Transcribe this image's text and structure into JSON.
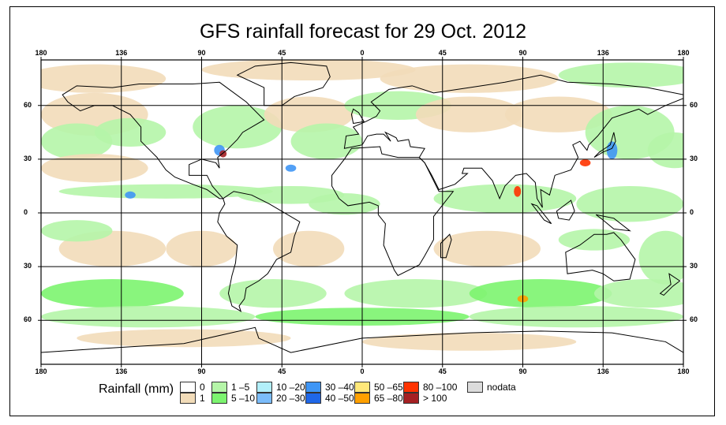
{
  "title": "GFS rainfall forecast for 29 Oct. 2012",
  "lon_labels": [
    "180",
    "136",
    "90",
    "45",
    "0",
    "45",
    "90",
    "136",
    "180"
  ],
  "lat_labels": [
    "60",
    "30",
    "0",
    "30",
    "60"
  ],
  "legend": {
    "title": "Rainfall (mm)",
    "items": [
      {
        "label": "0",
        "color": "#ffffff"
      },
      {
        "label": "1",
        "color": "#f2dcb9"
      },
      {
        "label": "1 –5",
        "color": "#b5f5a8"
      },
      {
        "label": "5 –10",
        "color": "#7cf46f"
      },
      {
        "label": "10 –20",
        "color": "#b2effa"
      },
      {
        "label": "20 –30",
        "color": "#7bbcfa"
      },
      {
        "label": "30 –40",
        "color": "#3f96f5"
      },
      {
        "label": "40 –50",
        "color": "#1f67e8"
      },
      {
        "label": "50 –65",
        "color": "#ffe87a"
      },
      {
        "label": "65 –80",
        "color": "#ffa000"
      },
      {
        "label": "80 –100",
        "color": "#ff3300"
      },
      {
        "label": "> 100",
        "color": "#a52023"
      },
      {
        "label": "nodata",
        "color": "#dcdcdc"
      }
    ]
  }
}
